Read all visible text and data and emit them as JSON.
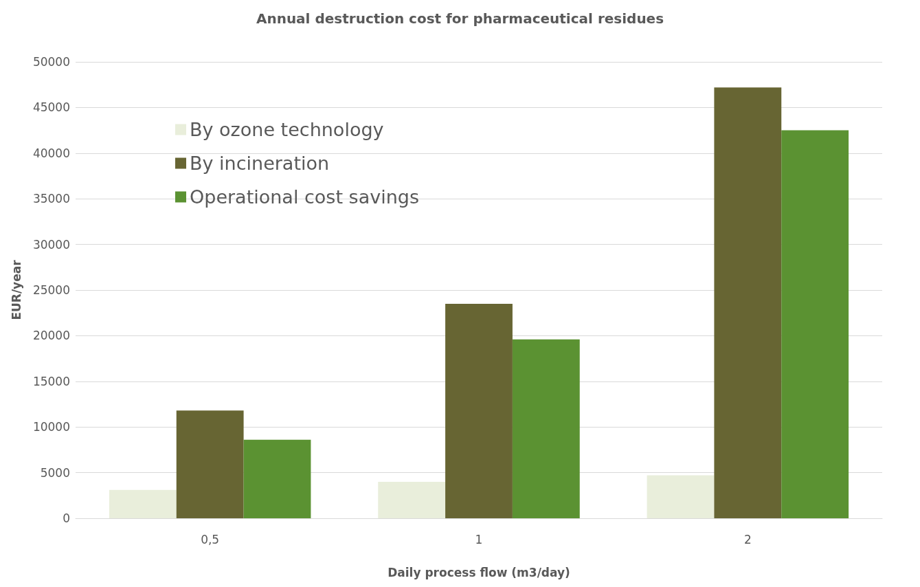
{
  "chart_data": {
    "type": "bar",
    "title": "Annual destruction cost for pharmaceutical residues",
    "xlabel": "Daily process flow (m3/day)",
    "ylabel": "EUR/year",
    "categories": [
      "0,5",
      "1",
      "2"
    ],
    "series": [
      {
        "name": "By ozone technology",
        "color": "#e9eedb",
        "values": [
          3100,
          4000,
          4700
        ]
      },
      {
        "name": "By incineration",
        "color": "#676533",
        "values": [
          11800,
          23500,
          47200
        ]
      },
      {
        "name": "Operational cost savings",
        "color": "#5b9232",
        "values": [
          8600,
          19600,
          42500
        ]
      }
    ],
    "ylim": [
      0,
      50000
    ],
    "yticks": [
      0,
      5000,
      10000,
      15000,
      20000,
      25000,
      30000,
      35000,
      40000,
      45000,
      50000
    ],
    "grid": "y",
    "legend": "top left"
  }
}
